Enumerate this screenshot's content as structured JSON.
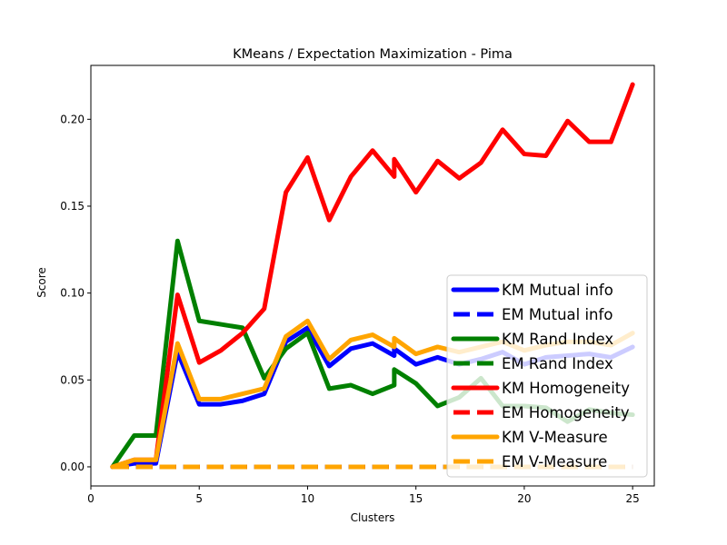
{
  "chart_data": {
    "type": "line",
    "title": "KMeans / Expectation Maximization - Pima",
    "xlabel": "Clusters",
    "ylabel": "Score",
    "xlim": [
      0,
      26
    ],
    "ylim": [
      -0.011,
      0.231
    ],
    "xticks": [
      0,
      5,
      10,
      15,
      20,
      25
    ],
    "xtick_labels": [
      "0",
      "5",
      "10",
      "15",
      "20",
      "25"
    ],
    "yticks": [
      0.0,
      0.05,
      0.1,
      0.15,
      0.2
    ],
    "ytick_labels": [
      "0.00",
      "0.05",
      "0.10",
      "0.15",
      "0.20"
    ],
    "grid": false,
    "legend_position": "lower-right",
    "series": [
      {
        "name": "KM Mutual info",
        "color": "#0000ff",
        "style": "solid",
        "x": [
          1,
          2,
          3,
          4,
          5,
          6,
          7,
          8,
          9,
          10,
          11,
          12,
          13,
          14,
          14,
          15,
          16,
          17,
          18,
          19,
          20,
          21,
          22,
          23,
          24,
          25
        ],
        "y": [
          0,
          0.002,
          0.002,
          0.066,
          0.036,
          0.036,
          0.038,
          0.042,
          0.072,
          0.08,
          0.058,
          0.068,
          0.071,
          0.064,
          0.068,
          0.059,
          0.063,
          0.059,
          0.062,
          0.066,
          0.059,
          0.063,
          0.064,
          0.065,
          0.063,
          0.069
        ]
      },
      {
        "name": "EM Mutual info",
        "color": "#0000ff",
        "style": "dashed",
        "x": [
          1,
          2,
          3,
          4,
          5,
          6,
          7,
          8,
          9,
          10,
          11,
          12,
          13,
          14,
          15,
          16,
          17,
          18,
          19,
          20,
          21,
          22,
          23,
          24,
          25
        ],
        "y": [
          0,
          0,
          0,
          0,
          0,
          0,
          0,
          0,
          0,
          0,
          0,
          0,
          0,
          0,
          0,
          0,
          0,
          0,
          0,
          0,
          0,
          0,
          0,
          0,
          0
        ]
      },
      {
        "name": "KM Rand Index",
        "color": "#008000",
        "style": "solid",
        "x": [
          1,
          2,
          3,
          4,
          5,
          6,
          7,
          8,
          9,
          10,
          11,
          12,
          13,
          14,
          14,
          15,
          16,
          17,
          18,
          19,
          20,
          21,
          22,
          23,
          24,
          25
        ],
        "y": [
          0,
          0.018,
          0.018,
          0.13,
          0.084,
          0.082,
          0.08,
          0.051,
          0.068,
          0.077,
          0.045,
          0.047,
          0.042,
          0.047,
          0.056,
          0.048,
          0.035,
          0.04,
          0.051,
          0.035,
          0.035,
          0.034,
          0.026,
          0.033,
          0.031,
          0.03
        ]
      },
      {
        "name": "EM Rand Index",
        "color": "#008000",
        "style": "dashed",
        "x": [
          1,
          2,
          3,
          4,
          5,
          6,
          7,
          8,
          9,
          10,
          11,
          12,
          13,
          14,
          15,
          16,
          17,
          18,
          19,
          20,
          21,
          22,
          23,
          24,
          25
        ],
        "y": [
          0,
          0,
          0,
          0,
          0,
          0,
          0,
          0,
          0,
          0,
          0,
          0,
          0,
          0,
          0,
          0,
          0,
          0,
          0,
          0,
          0,
          0,
          0,
          0,
          0
        ]
      },
      {
        "name": "KM Homogeneity",
        "color": "#ff0000",
        "style": "solid",
        "x": [
          1,
          2,
          3,
          4,
          5,
          6,
          7,
          8,
          9,
          10,
          11,
          12,
          13,
          14,
          14,
          15,
          16,
          17,
          18,
          19,
          20,
          21,
          22,
          23,
          24,
          25
        ],
        "y": [
          0,
          0.004,
          0.004,
          0.099,
          0.06,
          0.067,
          0.077,
          0.091,
          0.158,
          0.178,
          0.142,
          0.167,
          0.182,
          0.167,
          0.177,
          0.158,
          0.176,
          0.166,
          0.175,
          0.194,
          0.18,
          0.179,
          0.199,
          0.187,
          0.187,
          0.22
        ]
      },
      {
        "name": "EM Homogeneity",
        "color": "#ff0000",
        "style": "dashed",
        "x": [
          1,
          2,
          3,
          4,
          5,
          6,
          7,
          8,
          9,
          10,
          11,
          12,
          13,
          14,
          15,
          16,
          17,
          18,
          19,
          20,
          21,
          22,
          23,
          24,
          25
        ],
        "y": [
          0,
          0,
          0,
          0,
          0,
          0,
          0,
          0,
          0,
          0,
          0,
          0,
          0,
          0,
          0,
          0,
          0,
          0,
          0,
          0,
          0,
          0,
          0,
          0,
          0
        ]
      },
      {
        "name": "KM V-Measure",
        "color": "#ffa500",
        "style": "solid",
        "x": [
          1,
          2,
          3,
          4,
          5,
          6,
          7,
          8,
          9,
          10,
          11,
          12,
          13,
          14,
          14,
          15,
          16,
          17,
          18,
          19,
          20,
          21,
          22,
          23,
          24,
          25
        ],
        "y": [
          0,
          0.004,
          0.004,
          0.071,
          0.039,
          0.039,
          0.042,
          0.045,
          0.075,
          0.084,
          0.062,
          0.073,
          0.076,
          0.069,
          0.074,
          0.065,
          0.069,
          0.066,
          0.069,
          0.072,
          0.067,
          0.07,
          0.072,
          0.072,
          0.07,
          0.077
        ]
      },
      {
        "name": "EM V-Measure",
        "color": "#ffa500",
        "style": "dashed",
        "x": [
          1,
          2,
          3,
          4,
          5,
          6,
          7,
          8,
          9,
          10,
          11,
          12,
          13,
          14,
          15,
          16,
          17,
          18,
          19,
          20,
          21,
          22,
          23,
          24,
          25
        ],
        "y": [
          0,
          0,
          0,
          0,
          0,
          0,
          0,
          0,
          0,
          0,
          0,
          0,
          0,
          0,
          0,
          0,
          0,
          0,
          0,
          0,
          0,
          0,
          0,
          0,
          0
        ]
      }
    ]
  }
}
